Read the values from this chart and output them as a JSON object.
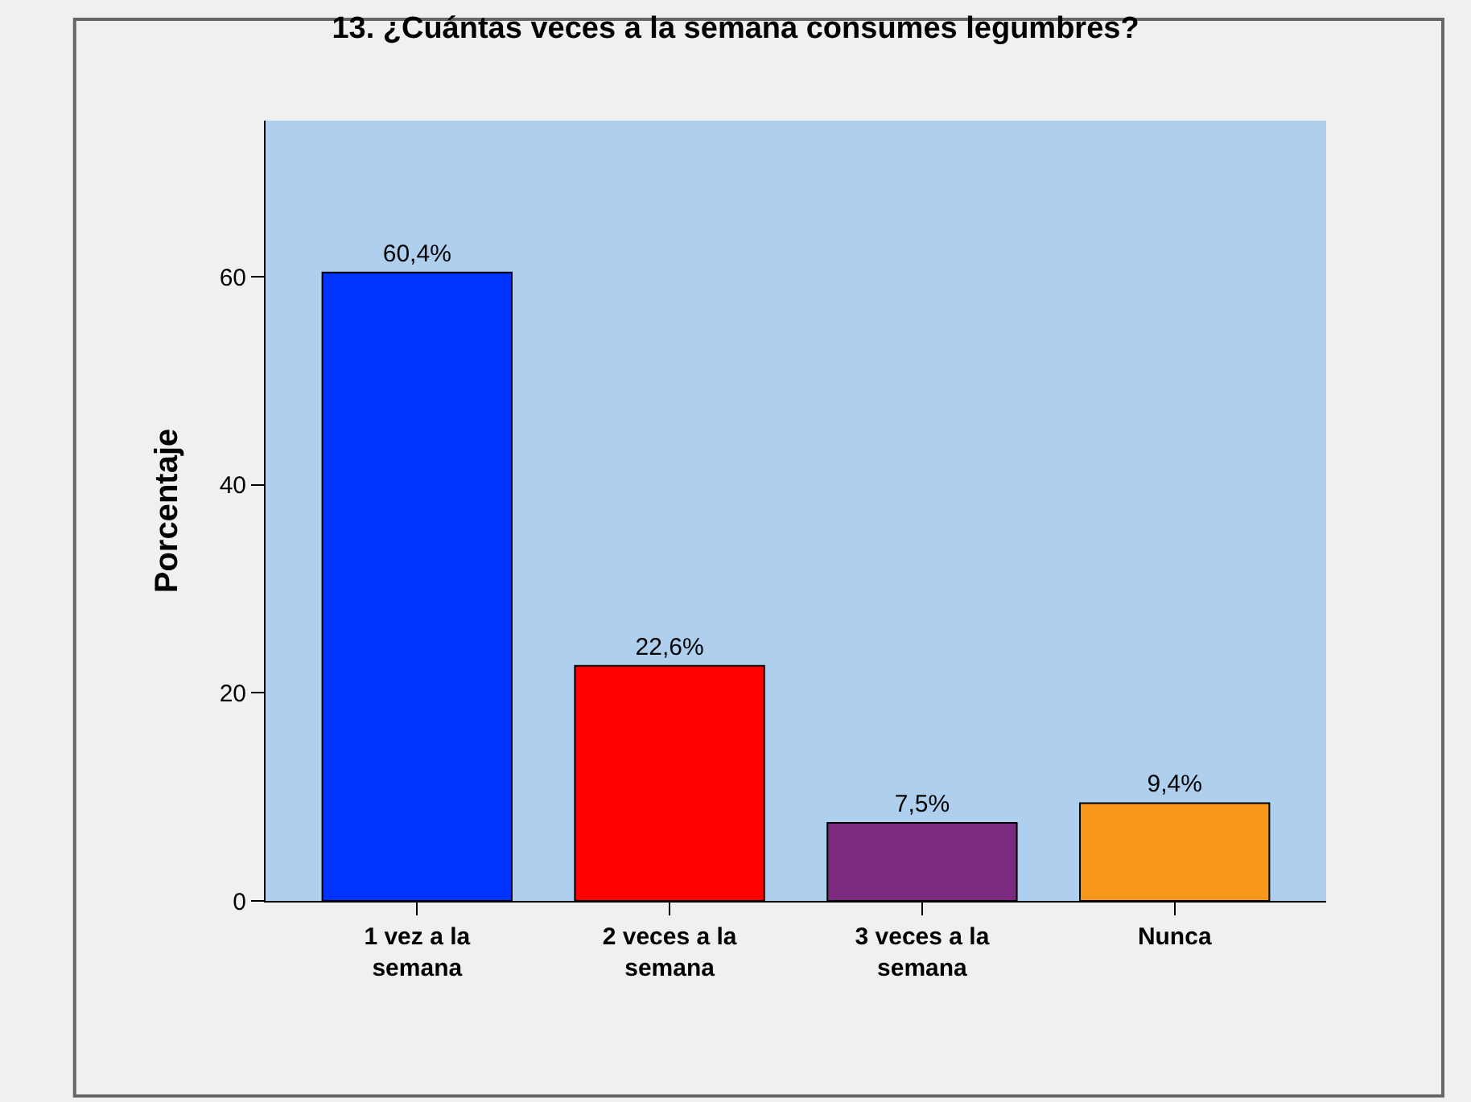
{
  "chart_data": {
    "type": "bar",
    "title": "13. ¿Cuántas veces a la semana consumes legumbres?",
    "ylabel": "Porcentaje",
    "categories": [
      "1 vez a la semana",
      "2 veces a la semana",
      "3 veces a la semana",
      "Nunca"
    ],
    "values": [
      60.4,
      22.6,
      7.5,
      9.4
    ],
    "value_labels": [
      "60,4%",
      "22,6%",
      "7,5%",
      "9,4%"
    ],
    "colors": [
      "#0033ff",
      "#ff0000",
      "#7b2a7f",
      "#f7981d"
    ],
    "ylim": [
      0,
      75
    ],
    "yticks": [
      0,
      20,
      40,
      60
    ],
    "grid": false
  }
}
